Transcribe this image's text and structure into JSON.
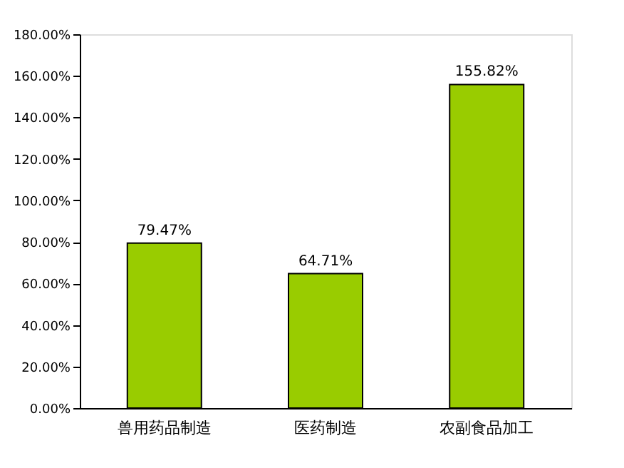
{
  "chart_data": {
    "type": "bar",
    "categories": [
      "兽用药品制造",
      "医药制造",
      "农副食品加工"
    ],
    "values": [
      79.47,
      64.71,
      155.82
    ],
    "value_labels": [
      "79.47%",
      "64.71%",
      "155.82%"
    ],
    "color": "#99cc00",
    "ylim": [
      0,
      180
    ],
    "yticks": [
      {
        "value": 0,
        "label": "0.00%"
      },
      {
        "value": 20,
        "label": "20.00%"
      },
      {
        "value": 40,
        "label": "40.00%"
      },
      {
        "value": 60,
        "label": "60.00%"
      },
      {
        "value": 80,
        "label": "80.00%"
      },
      {
        "value": 100,
        "label": "100.00%"
      },
      {
        "value": 120,
        "label": "120.00%"
      },
      {
        "value": 140,
        "label": "140.00%"
      },
      {
        "value": 160,
        "label": "160.00%"
      },
      {
        "value": 180,
        "label": "180.00%"
      }
    ],
    "grid": false
  }
}
